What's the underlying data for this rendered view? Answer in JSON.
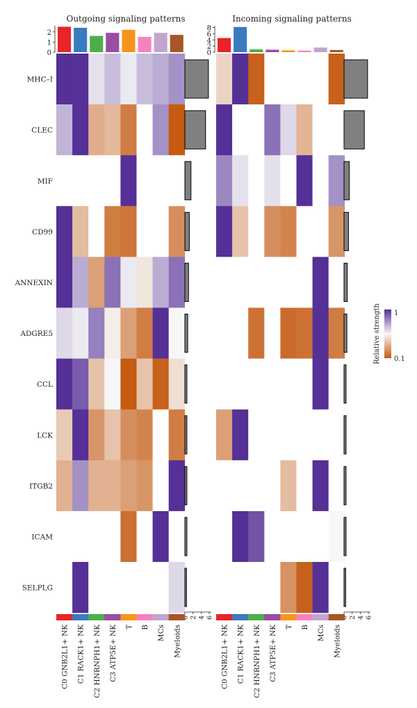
{
  "chart_data": {
    "type": "heatmap",
    "pathways": [
      "MHC–I",
      "CLEC",
      "MIF",
      "CD99",
      "ANNEXIN",
      "ADGRE5",
      "CCL",
      "LCK",
      "ITGB2",
      "ICAM",
      "SELPLG"
    ],
    "cell_types": [
      "C0 GNB2L1+ NK",
      "C1 RACK1+ NK",
      "C2 HNRNPH1+ NK",
      "C3 ATP5E+ NK",
      "T",
      "B",
      "MCs",
      "Myeloids"
    ],
    "cell_type_colors": [
      "#e8232a",
      "#3a7bbf",
      "#4daf4a",
      "#984ea3",
      "#f7941d",
      "#f781bf",
      "#c2a5cf",
      "#a65628"
    ],
    "colorbar": {
      "label": "Relative strength",
      "max_label": "1",
      "min_label": "0.1"
    },
    "palette": {
      "high": "#553096",
      "mid": "#f7f7f7",
      "low": "#c55a11",
      "bar": "#808080",
      "none": "#ffffff"
    },
    "panels": [
      {
        "title": "Outgoing signaling patterns",
        "top_bars": {
          "values": [
            2.5,
            2.4,
            1.6,
            1.9,
            2.2,
            1.5,
            1.9,
            1.7
          ],
          "ylim": [
            0,
            2.6
          ],
          "ticks": [
            "0",
            "1",
            "2"
          ]
        },
        "side_bars": {
          "values": [
            5.8,
            5.1,
            1.5,
            1.1,
            0.9,
            0.7,
            0.5,
            0.5,
            0.5,
            0.5,
            0.4
          ],
          "xlim": [
            0,
            6.5
          ],
          "ticks": [
            "0",
            "2",
            "4",
            "6"
          ]
        },
        "matrix": [
          [
            1.0,
            1.0,
            0.6,
            0.68,
            0.58,
            0.68,
            0.72,
            0.78
          ],
          [
            0.7,
            1.0,
            0.34,
            0.37,
            0.2,
            null,
            0.78,
            0.1
          ],
          [
            null,
            null,
            null,
            null,
            1.0,
            null,
            null,
            null
          ],
          [
            1.0,
            0.38,
            null,
            0.2,
            0.18,
            null,
            null,
            0.25
          ],
          [
            1.0,
            0.72,
            0.3,
            0.85,
            0.58,
            0.5,
            0.72,
            0.85
          ],
          [
            0.62,
            0.58,
            0.82,
            0.52,
            0.3,
            0.2,
            1.0,
            0.55
          ],
          [
            1.0,
            0.9,
            0.4,
            0.55,
            0.1,
            0.4,
            0.12,
            0.48
          ],
          [
            0.42,
            1.0,
            0.27,
            0.4,
            0.25,
            0.22,
            null,
            0.2
          ],
          [
            0.35,
            0.78,
            0.35,
            0.35,
            0.3,
            0.27,
            null,
            1.0
          ],
          [
            null,
            null,
            null,
            null,
            0.16,
            null,
            1.0,
            null
          ],
          [
            null,
            1.0,
            null,
            null,
            null,
            null,
            null,
            0.62
          ]
        ]
      },
      {
        "title": "Incoming signaling patterns",
        "top_bars": {
          "values": [
            4.6,
            8.2,
            0.9,
            0.8,
            0.6,
            0.5,
            1.5,
            0.7
          ],
          "ylim": [
            0,
            8.6
          ],
          "ticks": [
            "0",
            "2",
            "4",
            "6",
            "8"
          ]
        },
        "side_bars": {
          "values": [
            5.8,
            5.0,
            1.3,
            1.1,
            0.8,
            0.7,
            0.5,
            0.5,
            0.5,
            0.5,
            0.4
          ],
          "xlim": [
            0,
            6.5
          ],
          "ticks": [
            "0",
            "2",
            "4",
            "6"
          ]
        },
        "matrix": [
          [
            0.45,
            1.0,
            0.12,
            null,
            null,
            null,
            null,
            0.12
          ],
          [
            1.0,
            null,
            null,
            0.85,
            0.62,
            0.36,
            null,
            null
          ],
          [
            0.8,
            0.6,
            null,
            0.6,
            null,
            1.0,
            null,
            0.78
          ],
          [
            1.0,
            0.4,
            null,
            0.25,
            0.22,
            null,
            null,
            0.27
          ],
          [
            null,
            null,
            null,
            null,
            null,
            null,
            1.0,
            null
          ],
          [
            null,
            null,
            0.17,
            null,
            0.15,
            0.17,
            1.0,
            0.2
          ],
          [
            null,
            null,
            null,
            null,
            null,
            null,
            1.0,
            null
          ],
          [
            0.3,
            1.0,
            null,
            null,
            null,
            null,
            null,
            null
          ],
          [
            null,
            null,
            null,
            null,
            0.38,
            null,
            1.0,
            null
          ],
          [
            null,
            1.0,
            0.92,
            null,
            null,
            null,
            null,
            0.55
          ],
          [
            null,
            null,
            null,
            null,
            0.26,
            0.12,
            1.0,
            null
          ]
        ]
      }
    ]
  }
}
